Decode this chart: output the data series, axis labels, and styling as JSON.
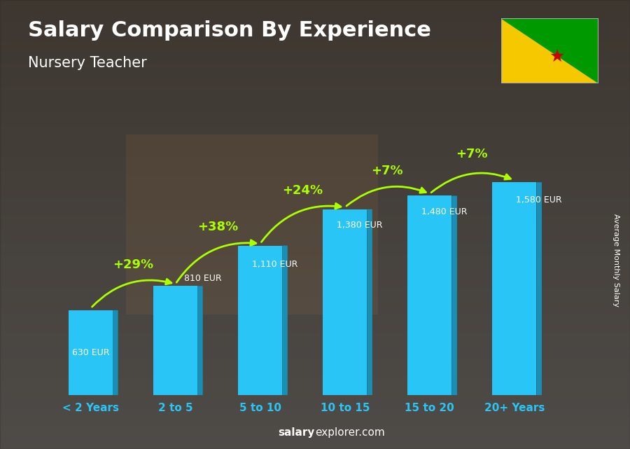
{
  "title": "Salary Comparison By Experience",
  "subtitle": "Nursery Teacher",
  "categories": [
    "< 2 Years",
    "2 to 5",
    "5 to 10",
    "10 to 15",
    "15 to 20",
    "20+ Years"
  ],
  "values": [
    630,
    810,
    1110,
    1380,
    1480,
    1580
  ],
  "labels": [
    "630 EUR",
    "810 EUR",
    "1,110 EUR",
    "1,380 EUR",
    "1,480 EUR",
    "1,580 EUR"
  ],
  "pct_labels": [
    "+29%",
    "+38%",
    "+24%",
    "+7%",
    "+7%"
  ],
  "bar_color": "#29c5f6",
  "bar_color_dark": "#1a8fb5",
  "bar_color_top": "#7de8ff",
  "ylabel_text": "Average Monthly Salary",
  "footer_bold": "salary",
  "footer_rest": "explorer.com",
  "background_color": "#555555",
  "title_color": "#ffffff",
  "subtitle_color": "#ffffff",
  "label_color": "#ffffff",
  "pct_color": "#aaff00",
  "arrow_color": "#aaff00",
  "xtick_color": "#29c5f6",
  "ylim": [
    0,
    2000
  ],
  "flag_yellow": "#f5c800",
  "flag_green": "#009a00",
  "flag_star": "#cc0000"
}
